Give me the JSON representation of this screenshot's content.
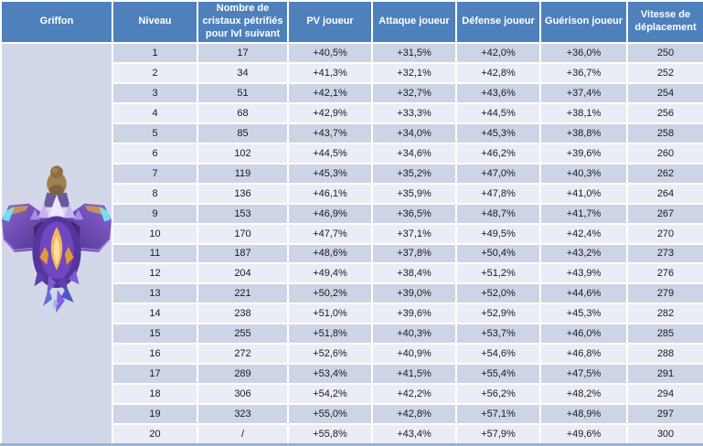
{
  "table": {
    "columns": [
      {
        "label": "Griffon"
      },
      {
        "label": "Niveau"
      },
      {
        "label": "Nombre de cristaux pétrifiés pour lvl suivant"
      },
      {
        "label": "PV joueur"
      },
      {
        "label": "Attaque joueur"
      },
      {
        "label": "Défense joueur"
      },
      {
        "label": "Guérison joueur"
      },
      {
        "label": "Vitesse de déplacement"
      }
    ],
    "griffon_image": "purple-griffon-mount-with-rider-illustration",
    "row_keys": [
      "niveau",
      "cristaux",
      "pv",
      "attaque",
      "defense",
      "guerison",
      "vitesse"
    ],
    "rows": [
      {
        "niveau": "1",
        "cristaux": "17",
        "pv": "+40,5%",
        "attaque": "+31,5%",
        "defense": "+42,0%",
        "guerison": "+36,0%",
        "vitesse": "250"
      },
      {
        "niveau": "2",
        "cristaux": "34",
        "pv": "+41,3%",
        "attaque": "+32,1%",
        "defense": "+42,8%",
        "guerison": "+36,7%",
        "vitesse": "252"
      },
      {
        "niveau": "3",
        "cristaux": "51",
        "pv": "+42,1%",
        "attaque": "+32,7%",
        "defense": "+43,6%",
        "guerison": "+37,4%",
        "vitesse": "254"
      },
      {
        "niveau": "4",
        "cristaux": "68",
        "pv": "+42,9%",
        "attaque": "+33,3%",
        "defense": "+44,5%",
        "guerison": "+38,1%",
        "vitesse": "256"
      },
      {
        "niveau": "5",
        "cristaux": "85",
        "pv": "+43,7%",
        "attaque": "+34,0%",
        "defense": "+45,3%",
        "guerison": "+38,8%",
        "vitesse": "258"
      },
      {
        "niveau": "6",
        "cristaux": "102",
        "pv": "+44,5%",
        "attaque": "+34,6%",
        "defense": "+46,2%",
        "guerison": "+39,6%",
        "vitesse": "260"
      },
      {
        "niveau": "7",
        "cristaux": "119",
        "pv": "+45,3%",
        "attaque": "+35,2%",
        "defense": "+47,0%",
        "guerison": "+40,3%",
        "vitesse": "262"
      },
      {
        "niveau": "8",
        "cristaux": "136",
        "pv": "+46,1%",
        "attaque": "+35,9%",
        "defense": "+47,8%",
        "guerison": "+41,0%",
        "vitesse": "264"
      },
      {
        "niveau": "9",
        "cristaux": "153",
        "pv": "+46,9%",
        "attaque": "+36,5%",
        "defense": "+48,7%",
        "guerison": "+41,7%",
        "vitesse": "267"
      },
      {
        "niveau": "10",
        "cristaux": "170",
        "pv": "+47,7%",
        "attaque": "+37,1%",
        "defense": "+49,5%",
        "guerison": "+42,4%",
        "vitesse": "270"
      },
      {
        "niveau": "11",
        "cristaux": "187",
        "pv": "+48,6%",
        "attaque": "+37,8%",
        "defense": "+50,4%",
        "guerison": "+43,2%",
        "vitesse": "273"
      },
      {
        "niveau": "12",
        "cristaux": "204",
        "pv": "+49,4%",
        "attaque": "+38,4%",
        "defense": "+51,2%",
        "guerison": "+43,9%",
        "vitesse": "276"
      },
      {
        "niveau": "13",
        "cristaux": "221",
        "pv": "+50,2%",
        "attaque": "+39,0%",
        "defense": "+52,0%",
        "guerison": "+44,6%",
        "vitesse": "279"
      },
      {
        "niveau": "14",
        "cristaux": "238",
        "pv": "+51,0%",
        "attaque": "+39,6%",
        "defense": "+52,9%",
        "guerison": "+45,3%",
        "vitesse": "282"
      },
      {
        "niveau": "15",
        "cristaux": "255",
        "pv": "+51,8%",
        "attaque": "+40,3%",
        "defense": "+53,7%",
        "guerison": "+46,0%",
        "vitesse": "285"
      },
      {
        "niveau": "16",
        "cristaux": "272",
        "pv": "+52,6%",
        "attaque": "+40,9%",
        "defense": "+54,6%",
        "guerison": "+46,8%",
        "vitesse": "288"
      },
      {
        "niveau": "17",
        "cristaux": "289",
        "pv": "+53,4%",
        "attaque": "+41,5%",
        "defense": "+55,4%",
        "guerison": "+47,5%",
        "vitesse": "291"
      },
      {
        "niveau": "18",
        "cristaux": "306",
        "pv": "+54,2%",
        "attaque": "+42,2%",
        "defense": "+56,2%",
        "guerison": "+48,2%",
        "vitesse": "294"
      },
      {
        "niveau": "19",
        "cristaux": "323",
        "pv": "+55,0%",
        "attaque": "+42,8%",
        "defense": "+57,1%",
        "guerison": "+48,9%",
        "vitesse": "297"
      },
      {
        "niveau": "20",
        "cristaux": "/",
        "pv": "+55,8%",
        "attaque": "+43,4%",
        "defense": "+57,9%",
        "guerison": "+49,6%",
        "vitesse": "300"
      }
    ]
  },
  "colors": {
    "header_bg": "#4E80BC",
    "header_text": "#FFFFFF",
    "row_odd_bg": "#CDD4E6",
    "row_even_bg": "#EAEDF5",
    "griffon_cell_bg": "#D3D8E8",
    "separator": "#FFFFFF",
    "bottom_border": "#95B3D7",
    "cell_text": "#1B1B1B"
  }
}
